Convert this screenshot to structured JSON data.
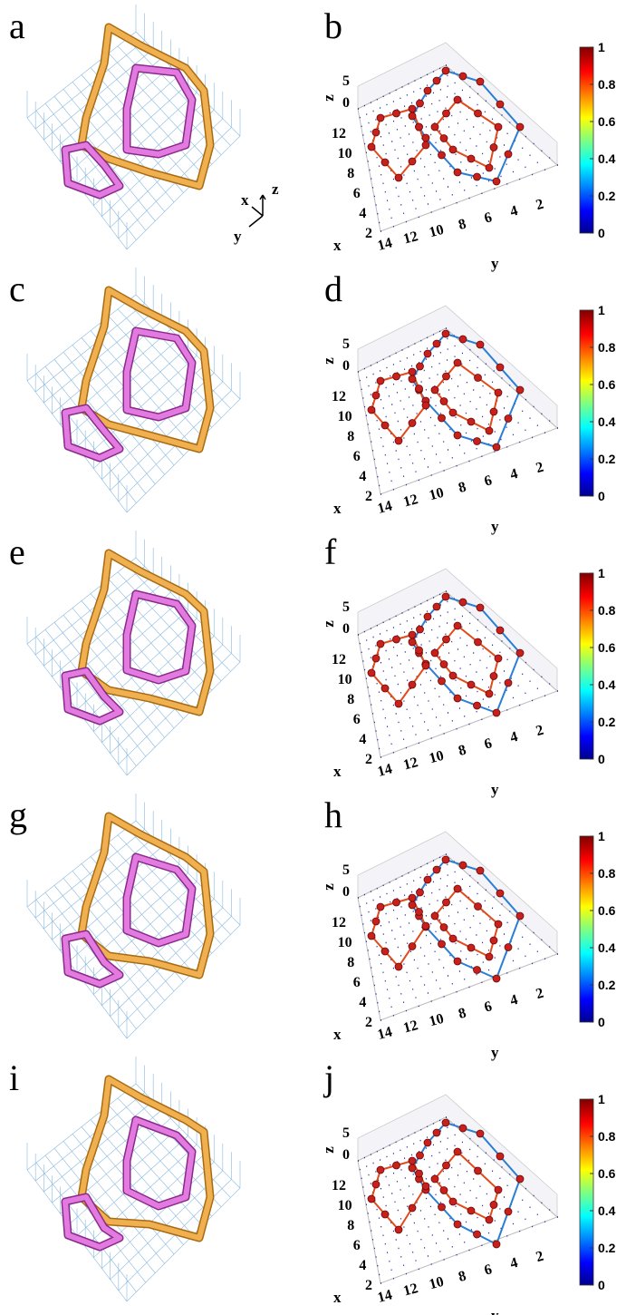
{
  "rows": [
    {
      "left_label": "a",
      "right_label": "b",
      "triad": [
        "x",
        "y",
        "z"
      ],
      "axes": {
        "x_title": "x",
        "y_title": "y",
        "z_title": "z",
        "x_ticks": [
          12,
          10,
          8,
          6,
          4,
          2
        ],
        "y_ticks": [
          14,
          12,
          10,
          8,
          6,
          4,
          2
        ],
        "z_ticks": [
          5,
          0
        ]
      },
      "colorbar_ticks": [
        1,
        0.8,
        0.6,
        0.4,
        0.2,
        0
      ]
    },
    {
      "left_label": "c",
      "right_label": "d",
      "axes": {
        "x_title": "x",
        "y_title": "y",
        "z_title": "z",
        "x_ticks": [
          12,
          10,
          8,
          6,
          4,
          2
        ],
        "y_ticks": [
          14,
          12,
          10,
          8,
          6,
          4,
          2
        ],
        "z_ticks": [
          5,
          0
        ]
      },
      "colorbar_ticks": [
        1,
        0.8,
        0.6,
        0.4,
        0.2,
        0
      ]
    },
    {
      "left_label": "e",
      "right_label": "f",
      "axes": {
        "x_title": "x",
        "y_title": "y",
        "z_title": "z",
        "x_ticks": [
          12,
          10,
          8,
          6,
          4,
          2
        ],
        "y_ticks": [
          14,
          12,
          10,
          8,
          6,
          4,
          2
        ],
        "z_ticks": [
          5,
          0
        ]
      },
      "colorbar_ticks": [
        1,
        0.8,
        0.6,
        0.4,
        0.2,
        0
      ]
    },
    {
      "left_label": "g",
      "right_label": "h",
      "axes": {
        "x_title": "x",
        "y_title": "y",
        "z_title": "z",
        "x_ticks": [
          12,
          10,
          8,
          6,
          4,
          2
        ],
        "y_ticks": [
          14,
          12,
          10,
          8,
          6,
          4,
          2
        ],
        "z_ticks": [
          5,
          0
        ]
      },
      "colorbar_ticks": [
        1,
        0.8,
        0.6,
        0.4,
        0.2,
        0
      ]
    },
    {
      "left_label": "i",
      "right_label": "j",
      "axes": {
        "x_title": "x",
        "y_title": "y",
        "z_title": "z",
        "x_ticks": [
          12,
          10,
          8,
          6,
          4,
          2
        ],
        "y_ticks": [
          14,
          12,
          10,
          8,
          6,
          4,
          2
        ],
        "z_ticks": [
          5,
          0
        ]
      },
      "colorbar_ticks": [
        1,
        0.8,
        0.6,
        0.4,
        0.2,
        0
      ]
    }
  ]
}
